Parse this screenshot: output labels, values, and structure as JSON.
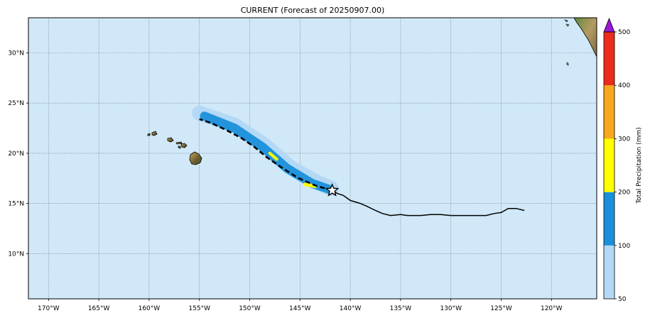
{
  "title": "CURRENT (Forecast of 20250907.00)",
  "map": {
    "ocean_color": "#d0e8f7",
    "grid_color": "#556677",
    "lon_range": [
      -172,
      -115.5
    ],
    "lat_range": [
      5.5,
      33.5
    ],
    "lon_ticks": [
      {
        "value": -170,
        "label": "170°W"
      },
      {
        "value": -165,
        "label": "165°W"
      },
      {
        "value": -160,
        "label": "160°W"
      },
      {
        "value": -155,
        "label": "155°W"
      },
      {
        "value": -150,
        "label": "150°W"
      },
      {
        "value": -145,
        "label": "145°W"
      },
      {
        "value": -140,
        "label": "140°W"
      },
      {
        "value": -135,
        "label": "135°W"
      },
      {
        "value": -130,
        "label": "130°W"
      },
      {
        "value": -125,
        "label": "125°W"
      },
      {
        "value": -120,
        "label": "120°W"
      }
    ],
    "lat_ticks": [
      {
        "value": 10,
        "label": "10°N"
      },
      {
        "value": 15,
        "label": "15°N"
      },
      {
        "value": 20,
        "label": "20°N"
      },
      {
        "value": 25,
        "label": "25°N"
      },
      {
        "value": 30,
        "label": "30°N"
      }
    ]
  },
  "chart_data": {
    "type": "map",
    "track_observed": [
      [
        -122.7,
        14.3
      ],
      [
        -123.5,
        14.5
      ],
      [
        -124.3,
        14.5
      ],
      [
        -125.0,
        14.1
      ],
      [
        -125.7,
        14.0
      ],
      [
        -126.5,
        13.8
      ],
      [
        -128.0,
        13.8
      ],
      [
        -130.0,
        13.8
      ],
      [
        -131.0,
        13.9
      ],
      [
        -132.0,
        13.9
      ],
      [
        -133.0,
        13.8
      ],
      [
        -134.3,
        13.8
      ],
      [
        -135.0,
        13.9
      ],
      [
        -136.0,
        13.8
      ],
      [
        -136.8,
        14.0
      ],
      [
        -137.5,
        14.3
      ],
      [
        -138.3,
        14.7
      ],
      [
        -139.0,
        15.0
      ],
      [
        -140.0,
        15.3
      ],
      [
        -140.7,
        15.8
      ],
      [
        -141.3,
        16.0
      ],
      [
        -141.8,
        16.3
      ]
    ],
    "track_forecast": [
      [
        -141.8,
        16.3
      ],
      [
        -143.5,
        16.8
      ],
      [
        -145.3,
        17.6
      ],
      [
        -147.0,
        18.7
      ],
      [
        -148.3,
        19.6
      ],
      [
        -149.5,
        20.6
      ],
      [
        -150.8,
        21.5
      ],
      [
        -152.3,
        22.3
      ],
      [
        -153.8,
        23.0
      ],
      [
        -155.0,
        23.4
      ]
    ],
    "current_position": [
      -141.8,
      16.3
    ],
    "precip_swath": [
      {
        "range": "50-100",
        "center": [
          [
            -155.0,
            24.0
          ],
          [
            -151.5,
            22.8
          ],
          [
            -148.5,
            20.8
          ],
          [
            -146.0,
            18.6
          ],
          [
            -143.5,
            17.2
          ],
          [
            -141.9,
            16.5
          ]
        ],
        "width_deg": 1.5
      },
      {
        "range": "100-200",
        "center": [
          [
            -154.5,
            23.7
          ],
          [
            -151.5,
            22.5
          ],
          [
            -148.7,
            20.6
          ],
          [
            -146.3,
            18.5
          ],
          [
            -143.8,
            17.0
          ],
          [
            -142.1,
            16.4
          ]
        ],
        "width_deg": 0.9
      },
      {
        "range": "200-300",
        "center": [
          [
            -148.0,
            20.0
          ],
          [
            -147.3,
            19.4
          ]
        ],
        "width_deg": 0.3
      },
      {
        "range": "200-300",
        "center": [
          [
            -144.5,
            16.9
          ],
          [
            -143.5,
            16.7
          ]
        ],
        "width_deg": 0.35
      }
    ],
    "colorbar": {
      "label": "Total Precipitation (mm)",
      "ticks": [
        50,
        100,
        200,
        300,
        400,
        500
      ],
      "tick_labels": [
        "50",
        "100",
        "200",
        "300",
        "400",
        "500"
      ],
      "colors": [
        "#b2d8f5",
        "#1a90da",
        "#ffff00",
        "#f7a81c",
        "#ec2b1c"
      ],
      "extend_color": "#9b19d6"
    },
    "land_colors": {
      "hawaii": "#8b6a3c",
      "mainland": "#9a8a55"
    }
  }
}
